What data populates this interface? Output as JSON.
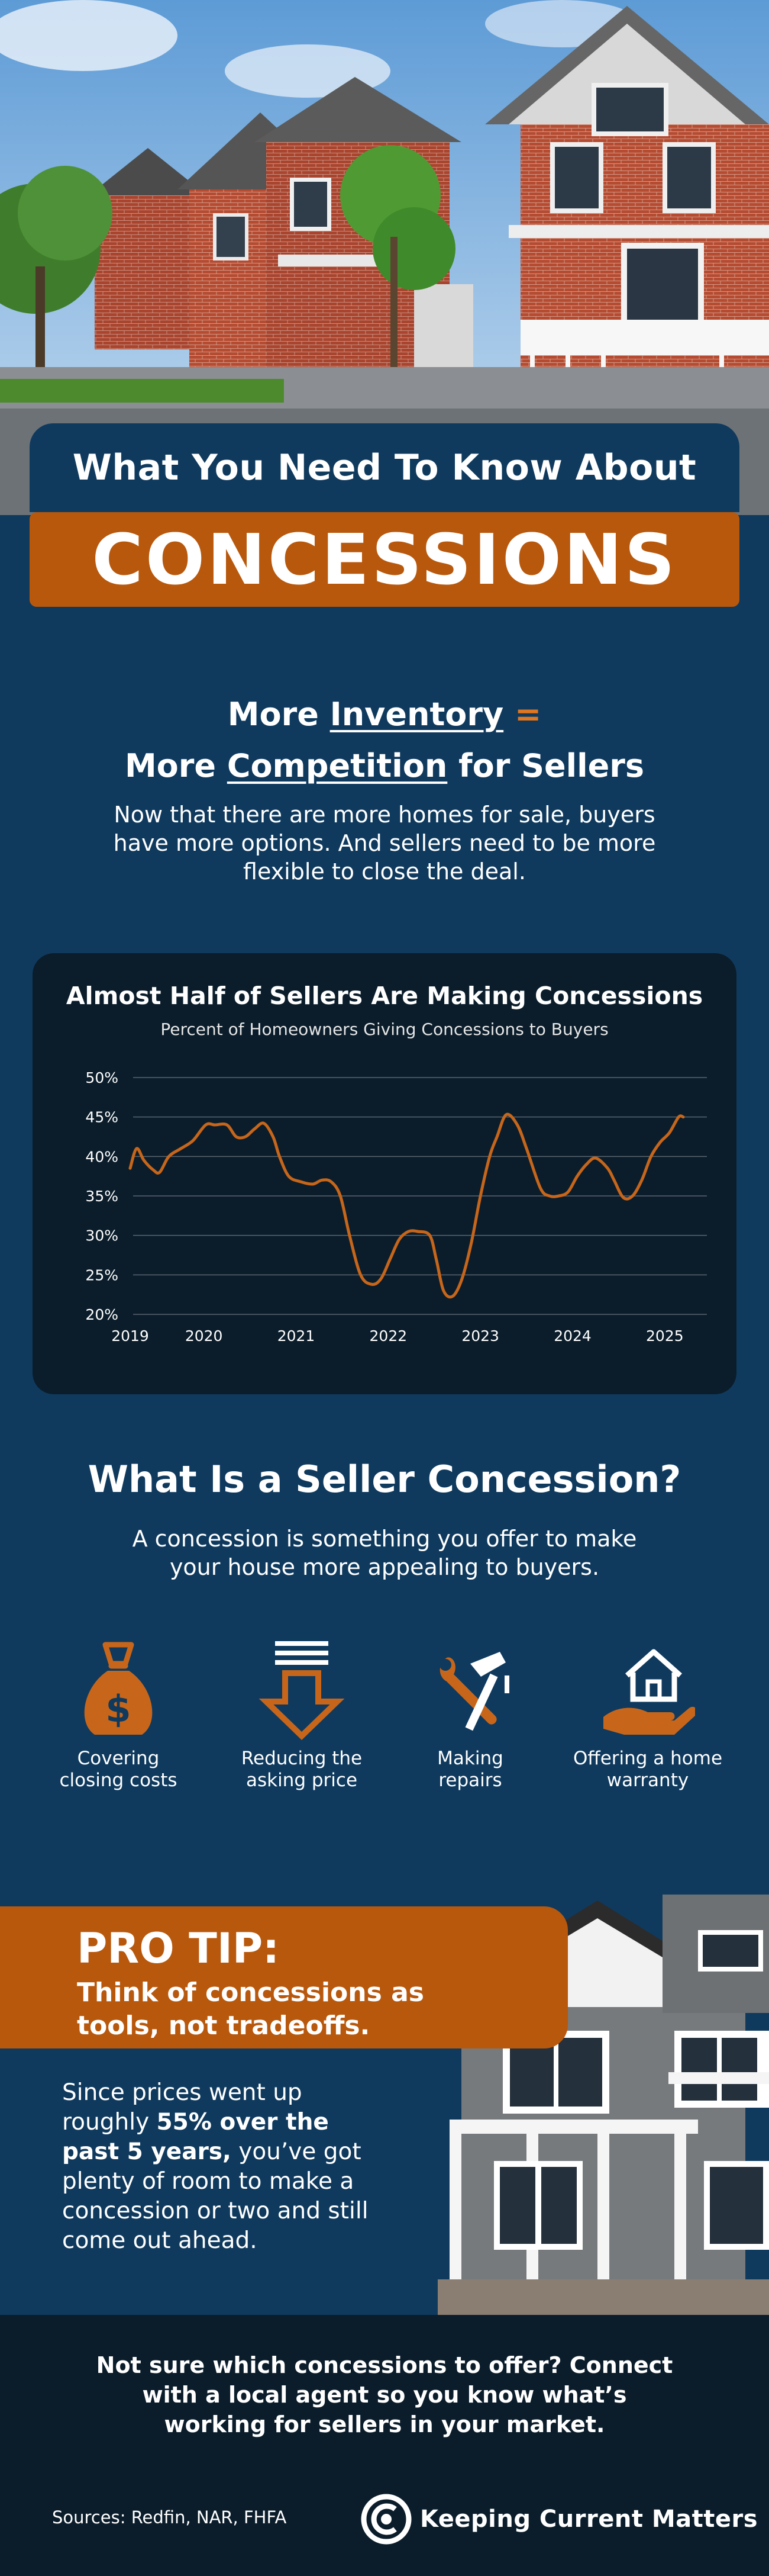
{
  "header": {
    "line1": "What You Need To Know About",
    "line2": "CONCESSIONS"
  },
  "intro": {
    "h1_a": "More ",
    "h1_b": "Inventory",
    "h1_c": " =",
    "h2_a": "More ",
    "h2_b": "Competition",
    "h2_c": " for Sellers",
    "body": "Now that there are more homes for sale, buyers have more options. And sellers need to be more flexible to close the deal."
  },
  "chart_data": {
    "type": "line",
    "title": "Almost Half of Sellers Are Making Concessions",
    "subtitle": "Percent of Homeowners Giving Concessions to Buyers",
    "xlabel": "",
    "ylabel": "",
    "x_tick_labels": [
      "2019",
      "2020",
      "2021",
      "2022",
      "2023",
      "2024",
      "2025"
    ],
    "x_ticks": [
      2019.0,
      2019.8,
      2020.8,
      2021.8,
      2022.8,
      2023.8,
      2024.8
    ],
    "y_tick_labels": [
      "20%",
      "25%",
      "30%",
      "35%",
      "40%",
      "45%",
      "50%"
    ],
    "y_ticks": [
      20,
      25,
      30,
      35,
      40,
      45,
      50
    ],
    "xlim": [
      2019.0,
      2025.0
    ],
    "ylim": [
      20,
      50
    ],
    "grid": true,
    "color": "#c7661a",
    "series": [
      {
        "x": [
          2019.0,
          2019.07,
          2019.15,
          2019.25,
          2019.32,
          2019.42,
          2019.55,
          2019.68,
          2019.82,
          2019.92,
          2020.05,
          2020.15,
          2020.25,
          2020.35,
          2020.45,
          2020.55,
          2020.62,
          2020.72,
          2020.85,
          2020.98,
          2021.08,
          2021.18,
          2021.28,
          2021.38,
          2021.5,
          2021.62,
          2021.72,
          2021.82,
          2021.92,
          2022.02,
          2022.12,
          2022.25,
          2022.32,
          2022.4,
          2022.5,
          2022.6,
          2022.7,
          2022.8,
          2022.9,
          2022.98,
          2023.08,
          2023.2,
          2023.3,
          2023.45,
          2023.55,
          2023.65,
          2023.75,
          2023.85,
          2023.95,
          2024.05,
          2024.18,
          2024.25,
          2024.35,
          2024.45,
          2024.55,
          2024.65,
          2024.75,
          2024.85,
          2024.95,
          2025.0
        ],
        "y": [
          38.5,
          41.0,
          39.5,
          38.3,
          38.0,
          40.0,
          41.0,
          42.0,
          44.0,
          44.0,
          44.0,
          42.5,
          42.5,
          43.5,
          44.2,
          42.5,
          40.0,
          37.5,
          36.8,
          36.5,
          37.0,
          36.8,
          35.0,
          30.0,
          25.0,
          23.8,
          24.5,
          27.0,
          29.5,
          30.5,
          30.5,
          30.0,
          27.0,
          23.0,
          22.3,
          24.5,
          29.0,
          35.0,
          40.0,
          42.5,
          45.3,
          44.0,
          41.0,
          36.0,
          35.0,
          35.0,
          35.5,
          37.5,
          39.0,
          39.8,
          38.5,
          37.0,
          34.8,
          35.0,
          37.0,
          40.0,
          41.8,
          43.0,
          45.0,
          45.0
        ]
      }
    ]
  },
  "concession": {
    "title": "What Is a Seller Concession?",
    "body": "A concession is something you offer to make your house more appealing to buyers.",
    "tools": [
      {
        "label_1": "Covering",
        "label_2": "closing costs",
        "icon": "money-bag-icon"
      },
      {
        "label_1": "Reducing the",
        "label_2": "asking price",
        "icon": "down-arrow-icon"
      },
      {
        "label_1": "Making",
        "label_2": "repairs",
        "icon": "tools-icon"
      },
      {
        "label_1": "Offering a home",
        "label_2": "warranty",
        "icon": "house-in-hand-icon"
      }
    ]
  },
  "protip": {
    "title": "PRO TIP:",
    "sub": "Think of concessions as tools, not tradeoffs.",
    "body_a": "Since prices went up roughly ",
    "body_b": "55% over the past 5 years,",
    "body_c": " you’ve got plenty of room to make a concession or two and still come out ahead."
  },
  "footer": {
    "cta": "Not sure which concessions to offer? Connect with a local agent so you know what’s working for sellers in your market.",
    "sources": "Sources: Redfin, NAR, FHFA",
    "brand": "Keeping Current Matters"
  },
  "colors": {
    "navy": "#0f3a5e",
    "dark": "#0b1d2b",
    "orange": "#b8580d",
    "accent": "#e1761f"
  }
}
